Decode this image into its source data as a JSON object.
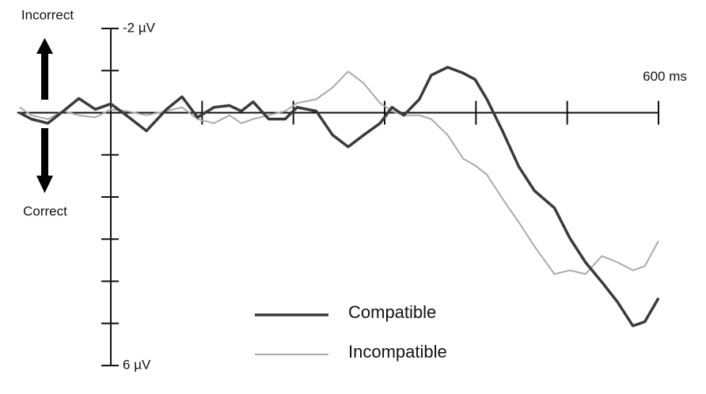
{
  "chart_data": {
    "type": "line",
    "top_label": "Incorrect",
    "bottom_label": "Correct",
    "x": [
      -100,
      -87,
      -69,
      -52,
      -35,
      -17,
      0,
      17,
      39,
      61,
      78,
      95,
      113,
      130,
      143,
      156,
      173,
      191,
      204,
      225,
      243,
      260,
      277,
      295,
      308,
      321,
      338,
      351,
      369,
      386,
      399,
      412,
      429,
      447,
      464,
      486,
      503,
      520,
      538,
      555,
      572,
      585,
      600
    ],
    "series": [
      {
        "name": "Compatible",
        "color": "#3a3a3a",
        "values": [
          0,
          0.15,
          0.25,
          -0.04,
          -0.34,
          -0.08,
          -0.21,
          0.06,
          0.43,
          -0.08,
          -0.38,
          0.11,
          -0.13,
          -0.17,
          -0.04,
          -0.26,
          0.15,
          0.15,
          -0.13,
          -0.04,
          0.53,
          0.81,
          0.53,
          0.25,
          -0.13,
          0.06,
          -0.32,
          -0.89,
          -1.08,
          -0.94,
          -0.79,
          -0.32,
          0.43,
          1.28,
          1.85,
          2.26,
          2.98,
          3.55,
          4.02,
          4.49,
          5.06,
          4.96,
          4.4
        ]
      },
      {
        "name": "Incompatible",
        "color": "#aaaaaa",
        "values": [
          -0.13,
          0.06,
          0.15,
          -0.04,
          0.06,
          0.11,
          -0.08,
          -0.04,
          0.06,
          -0.04,
          -0.13,
          0.15,
          0.25,
          0.06,
          0.25,
          0.15,
          0.06,
          -0.04,
          -0.23,
          -0.32,
          -0.6,
          -0.98,
          -0.7,
          -0.23,
          -0.04,
          0.06,
          0.06,
          0.15,
          0.53,
          1.09,
          1.25,
          1.47,
          2.04,
          2.6,
          3.17,
          3.83,
          3.74,
          3.83,
          3.4,
          3.55,
          3.74,
          3.64,
          3.04
        ]
      }
    ],
    "xlim": [
      -100,
      600
    ],
    "xticks": [
      100,
      200,
      300,
      400,
      500,
      600
    ],
    "xtick_labels": [
      {
        "value": 600,
        "label": "600 ms"
      }
    ],
    "ylim": [
      6,
      -2
    ],
    "yticks": [
      -2,
      -1,
      0,
      1,
      2,
      3,
      4,
      5,
      6
    ],
    "ytick_labels": [
      {
        "value": -2,
        "label": "-2 µV"
      },
      {
        "value": 6,
        "label": "6 µV"
      }
    ]
  }
}
